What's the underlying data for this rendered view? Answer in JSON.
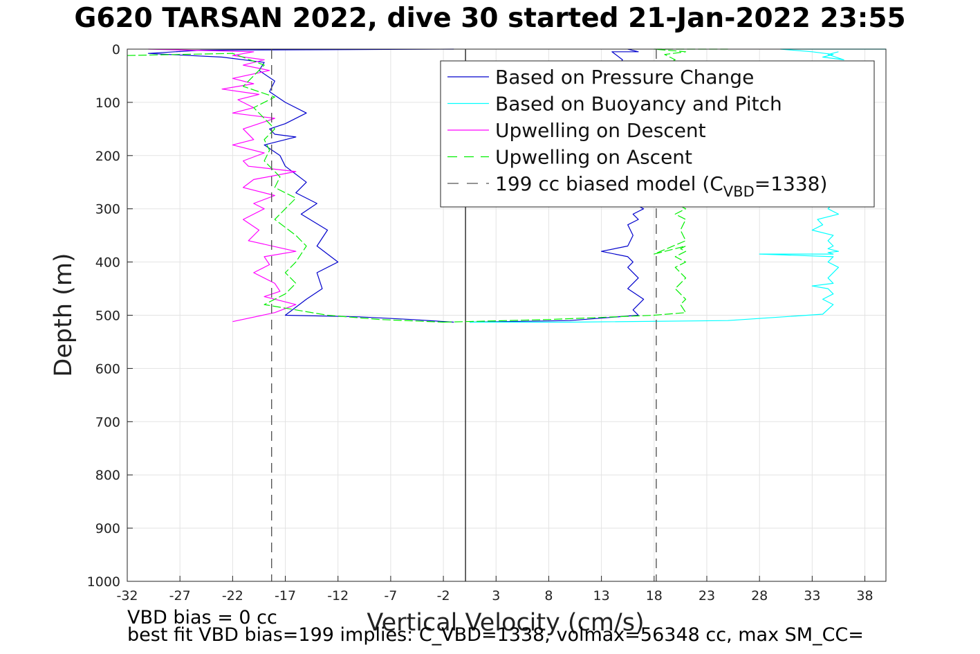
{
  "title": "G620 TARSAN 2022, dive 30 started 21-Jan-2022 23:55",
  "footer": {
    "line1": "VBD bias = 0 cc",
    "line2": "best fit VBD bias=199 implies: C_VBD=1338, volmax=56348 cc, max SM_CC="
  },
  "colors": {
    "pressure": "#0000cc",
    "buoyancy": "#00ffff",
    "descent": "#ff00ff",
    "ascent": "#00ee00",
    "model": "#555555",
    "grid": "#e3e3e3"
  },
  "chart_data": {
    "type": "line",
    "title": "G620 TARSAN 2022, dive 30 started 21-Jan-2022 23:55",
    "xlabel": "Vertical Velocity (cm/s)",
    "ylabel": "Depth (m)",
    "xlim": [
      -32,
      40
    ],
    "ylim": [
      0,
      1000
    ],
    "y_reversed": true,
    "grid": true,
    "legend_position": "top-right",
    "x_ticks": [
      -32,
      -27,
      -22,
      -17,
      -12,
      -7,
      -2,
      3,
      8,
      13,
      18,
      23,
      28,
      33,
      38
    ],
    "y_ticks": [
      0,
      100,
      200,
      300,
      400,
      500,
      600,
      700,
      800,
      900,
      1000
    ],
    "legend": [
      {
        "label": "Based on Pressure Change",
        "key": "pressure"
      },
      {
        "label": "Based on Buoyancy and Pitch",
        "key": "buoyancy"
      },
      {
        "label": "Upwelling on Descent",
        "key": "descent"
      },
      {
        "label": "Upwelling on Ascent",
        "key": "ascent"
      },
      {
        "label": "199 cc biased model (C",
        "sub": "VBD",
        "tail": "=1338)",
        "key": "model"
      }
    ],
    "series": [
      {
        "key": "pressure",
        "name": "Based on Pressure Change",
        "segments": [
          {
            "x": [
              -1,
              -25,
              -30,
              -23,
              -19,
              -19.5,
              -18,
              -18.5,
              -17,
              -15,
              -17,
              -18.5,
              -18,
              -16,
              -19,
              -17.5,
              -17,
              -15,
              -16,
              -14,
              -15.5,
              -13,
              -14,
              -12,
              -14,
              -13.5,
              -15,
              -17,
              -10,
              -5,
              -1
            ],
            "y": [
              0,
              2,
              8,
              15,
              25,
              40,
              60,
              80,
              100,
              120,
              140,
              150,
              160,
              165,
              180,
              200,
              220,
              250,
              270,
              290,
              310,
              340,
              370,
              400,
              420,
              450,
              470,
              500,
              503,
              508,
              513
            ]
          },
          {
            "x": [
              0.5,
              10,
              16.5,
              16,
              17,
              15.5,
              16.5,
              15.5,
              16,
              15.5,
              13,
              15.5,
              16,
              15.5,
              16.5,
              16,
              17,
              16.5,
              17,
              16.5,
              16
            ],
            "y": [
              513,
              510,
              500,
              490,
              470,
              450,
              430,
              410,
              400,
              390,
              380,
              370,
              350,
              330,
              320,
              310,
              300,
              295,
              290,
              285,
              280
            ]
          },
          {
            "x": [
              16.5,
              16,
              17,
              16.5,
              13.5,
              15,
              14,
              16.5,
              15.5
            ],
            "y": [
              280,
              260,
              200,
              100,
              60,
              20,
              5,
              5,
              0
            ]
          }
        ]
      },
      {
        "key": "buoyancy",
        "name": "Based on Buoyancy and Pitch",
        "segments": [
          {
            "x": [
              40,
              30,
              33,
              35,
              34,
              36,
              34.5,
              35.5
            ],
            "y": [
              0,
              0,
              5,
              10,
              15,
              20,
              10,
              5
            ]
          },
          {
            "x": [
              35,
              34.5,
              35.5,
              33.5,
              34,
              33,
              35,
              34.5,
              35,
              34.5,
              35.5,
              34.5,
              35,
              28,
              35,
              34.5,
              35.5,
              34.5,
              35,
              33,
              34.5,
              35,
              34,
              35,
              34,
              25,
              10,
              0.5
            ],
            "y": [
              290,
              300,
              310,
              320,
              330,
              340,
              350,
              360,
              370,
              375,
              380,
              382,
              385,
              385,
              390,
              400,
              410,
              430,
              440,
              445,
              450,
              460,
              470,
              480,
              498,
              510,
              513,
              513
            ]
          }
        ]
      },
      {
        "key": "descent",
        "name": "Upwelling on Descent",
        "segments": [
          {
            "x": [
              -30,
              -20,
              -22,
              -19,
              -21,
              -18.5,
              -22,
              -20,
              -23,
              -19.5,
              -21.5,
              -20,
              -22,
              -18,
              -21,
              -20,
              -22,
              -19,
              -21,
              -20.5,
              -16,
              -20,
              -21,
              -18,
              -20,
              -19,
              -21,
              -19.5,
              -20.5,
              -16,
              -19,
              -18.5,
              -20,
              -18,
              -17.5,
              -19,
              -16,
              -18,
              -22
            ],
            "y": [
              0,
              5,
              12,
              20,
              30,
              40,
              55,
              65,
              75,
              85,
              95,
              110,
              120,
              130,
              150,
              170,
              180,
              195,
              210,
              220,
              230,
              245,
              260,
              275,
              290,
              300,
              320,
              340,
              360,
              380,
              390,
              405,
              420,
              440,
              455,
              465,
              480,
              495,
              512
            ]
          }
        ]
      },
      {
        "key": "ascent",
        "name": "Upwelling on Ascent",
        "segments": [
          {
            "x": [
              -32,
              -22,
              -19,
              -20,
              -21,
              -18,
              -20,
              -19,
              -18,
              -19,
              -18.5,
              -19,
              -17.5,
              -18,
              -16,
              -17,
              -18,
              -16,
              -15,
              -16,
              -17,
              -16,
              -17,
              -19,
              -13,
              -8,
              -2
            ],
            "y": [
              12,
              8,
              30,
              50,
              70,
              90,
              110,
              130,
              150,
              170,
              190,
              210,
              240,
              260,
              280,
              300,
              320,
              350,
              370,
              400,
              420,
              440,
              460,
              480,
              500,
              508,
              513
            ]
          },
          {
            "x": [
              -2,
              8,
              18,
              21,
              20.5,
              21,
              20,
              21,
              20,
              21,
              20,
              21,
              20.5,
              21,
              18,
              21,
              20.5,
              21,
              20,
              21,
              20.5,
              21,
              20.5
            ],
            "y": [
              513,
              508,
              500,
              495,
              480,
              470,
              450,
              430,
              410,
              400,
              390,
              380,
              375,
              370,
              385,
              360,
              340,
              320,
              310,
              300,
              295,
              290,
              285
            ]
          },
          {
            "x": [
              21,
              20.5,
              21,
              18.5,
              20,
              19,
              21,
              18,
              25
            ],
            "y": [
              280,
              150,
              50,
              30,
              20,
              10,
              5,
              0,
              0
            ]
          }
        ]
      },
      {
        "key": "model",
        "name": "199 cc biased model (C_VBD=1338)",
        "dashed": true,
        "segments": [
          {
            "x": [
              -18.3,
              -18.3
            ],
            "y": [
              0,
              1000
            ]
          },
          {
            "x": [
              18.2,
              18.2
            ],
            "y": [
              0,
              1000
            ]
          }
        ]
      }
    ],
    "zero_line": {
      "x": [
        0.1,
        0.1
      ],
      "y": [
        0,
        1000
      ]
    }
  }
}
